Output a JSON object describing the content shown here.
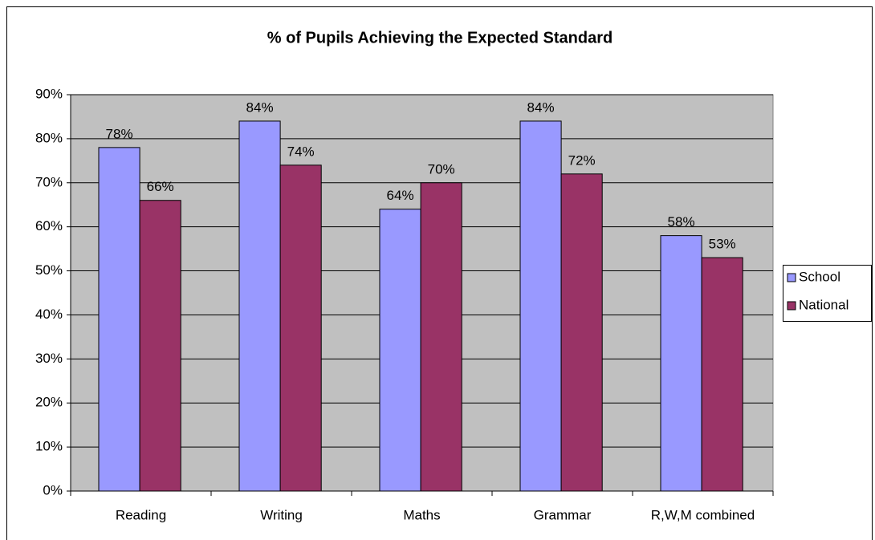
{
  "chart_data": {
    "type": "bar",
    "title": "% of Pupils Achieving the Expected Standard",
    "categories": [
      "Reading",
      "Writing",
      "Maths",
      "Grammar",
      "R,W,M combined"
    ],
    "series": [
      {
        "name": "School",
        "color": "#9999ff",
        "values": [
          78,
          84,
          64,
          84,
          58
        ],
        "value_labels": [
          "78%",
          "84%",
          "64%",
          "84%",
          "58%"
        ]
      },
      {
        "name": "National",
        "color": "#993366",
        "values": [
          66,
          74,
          70,
          72,
          53
        ],
        "value_labels": [
          "66%",
          "74%",
          "70%",
          "72%",
          "53%"
        ]
      }
    ],
    "ylim": [
      0,
      90
    ],
    "yticks": [
      {
        "value": 0,
        "label": "0%"
      },
      {
        "value": 10,
        "label": "10%"
      },
      {
        "value": 20,
        "label": "20%"
      },
      {
        "value": 30,
        "label": "30%"
      },
      {
        "value": 40,
        "label": "40%"
      },
      {
        "value": 50,
        "label": "50%"
      },
      {
        "value": 60,
        "label": "60%"
      },
      {
        "value": 70,
        "label": "70%"
      },
      {
        "value": 80,
        "label": "80%"
      },
      {
        "value": 90,
        "label": "90%"
      }
    ],
    "grid": true,
    "legend": "right"
  }
}
